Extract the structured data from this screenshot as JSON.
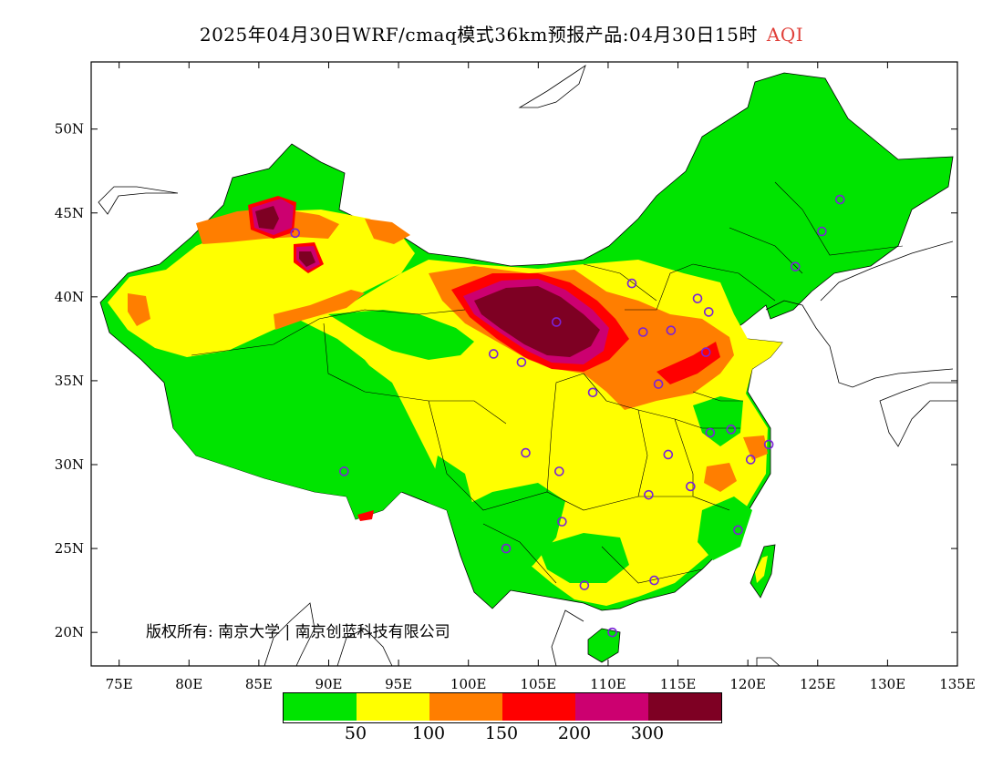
{
  "title": {
    "main": "2025年04月30日WRF/cmaq模式36km预报产品:04月30日15时",
    "variable": "AQI"
  },
  "axes": {
    "x_ticks": [
      "75E",
      "80E",
      "85E",
      "90E",
      "95E",
      "100E",
      "105E",
      "110E",
      "115E",
      "120E",
      "125E",
      "130E",
      "135E"
    ],
    "y_ticks": [
      "50N",
      "45N",
      "40N",
      "35N",
      "30N",
      "25N",
      "20N"
    ],
    "lon_range": [
      73,
      135
    ],
    "lat_range": [
      18,
      54
    ]
  },
  "copyright": "版权所有: 南京大学 | 南京创蓝科技有限公司",
  "legend": {
    "colors": [
      "#00e400",
      "#ffff00",
      "#ff7e00",
      "#ff0000",
      "#cc0070",
      "#7e0023"
    ],
    "labels": [
      "50",
      "100",
      "150",
      "200",
      "300"
    ]
  },
  "stations": [
    {
      "lon": 91.1,
      "lat": 29.6
    },
    {
      "lon": 87.6,
      "lat": 43.8
    },
    {
      "lon": 101.8,
      "lat": 36.6
    },
    {
      "lon": 103.8,
      "lat": 36.1
    },
    {
      "lon": 106.3,
      "lat": 38.5
    },
    {
      "lon": 111.7,
      "lat": 40.8
    },
    {
      "lon": 112.5,
      "lat": 37.9
    },
    {
      "lon": 114.5,
      "lat": 38.0
    },
    {
      "lon": 116.4,
      "lat": 39.9
    },
    {
      "lon": 117.2,
      "lat": 39.1
    },
    {
      "lon": 117.0,
      "lat": 36.7
    },
    {
      "lon": 113.6,
      "lat": 34.8
    },
    {
      "lon": 108.9,
      "lat": 34.3
    },
    {
      "lon": 104.1,
      "lat": 30.7
    },
    {
      "lon": 106.5,
      "lat": 29.6
    },
    {
      "lon": 114.3,
      "lat": 30.6
    },
    {
      "lon": 117.3,
      "lat": 31.9
    },
    {
      "lon": 118.8,
      "lat": 32.1
    },
    {
      "lon": 120.2,
      "lat": 30.3
    },
    {
      "lon": 121.5,
      "lat": 31.2
    },
    {
      "lon": 112.9,
      "lat": 28.2
    },
    {
      "lon": 115.9,
      "lat": 28.7
    },
    {
      "lon": 119.3,
      "lat": 26.1
    },
    {
      "lon": 106.7,
      "lat": 26.6
    },
    {
      "lon": 102.7,
      "lat": 25.0
    },
    {
      "lon": 108.3,
      "lat": 22.8
    },
    {
      "lon": 113.3,
      "lat": 23.1
    },
    {
      "lon": 110.3,
      "lat": 20.0
    },
    {
      "lon": 123.4,
      "lat": 41.8
    },
    {
      "lon": 125.3,
      "lat": 43.9
    },
    {
      "lon": 126.6,
      "lat": 45.8
    }
  ]
}
